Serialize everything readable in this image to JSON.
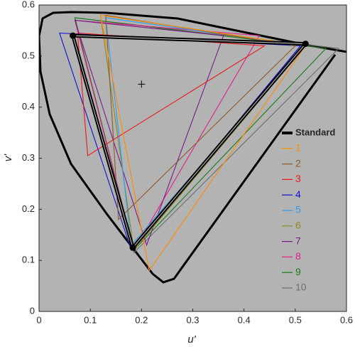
{
  "chart_data": {
    "type": "chromaticity",
    "x_label": "u'",
    "y_label": "v'",
    "xlim": [
      0,
      0.6
    ],
    "ylim": [
      0,
      0.6
    ],
    "xticks": [
      0,
      0.1,
      0.2,
      0.3,
      0.4,
      0.5,
      0.6
    ],
    "yticks": [
      0,
      0.1,
      0.2,
      0.3,
      0.4,
      0.5,
      0.6
    ],
    "background": "#b3b3b3",
    "locus": {
      "color": "#000000",
      "x": [
        0.6,
        0.5196,
        0.2702,
        0.1316,
        0.0624,
        0.0277,
        0.0069,
        0.0,
        0.0028,
        0.0208,
        0.0624,
        0.1316,
        0.2217,
        0.2425,
        0.2633,
        0.5778
      ],
      "values": [
        0.5083,
        0.5222,
        0.5736,
        0.5847,
        0.5861,
        0.5847,
        0.5736,
        0.5389,
        0.4694,
        0.3861,
        0.2889,
        0.1917,
        0.0736,
        0.057,
        0.0639,
        0.5028
      ]
    },
    "cross": {
      "x": 0.2,
      "y": 0.445
    },
    "series": [
      {
        "name": "Standard",
        "color": "#000000",
        "x": [
          0.066,
          0.52,
          0.183
        ],
        "values": [
          0.54,
          0.524,
          0.125
        ]
      },
      {
        "name": "1",
        "color": "#ff8c00",
        "x": [
          0.12,
          0.52,
          0.215
        ],
        "values": [
          0.58,
          0.52,
          0.08
        ]
      },
      {
        "name": "2",
        "color": "#8b5a2b",
        "x": [
          0.13,
          0.5,
          0.155
        ],
        "values": [
          0.58,
          0.52,
          0.18
        ]
      },
      {
        "name": "3",
        "color": "#e8191b",
        "x": [
          0.075,
          0.44,
          0.095
        ],
        "values": [
          0.545,
          0.52,
          0.305
        ]
      },
      {
        "name": "4",
        "color": "#1010d0",
        "x": [
          0.04,
          0.51,
          0.18
        ],
        "values": [
          0.545,
          0.52,
          0.12
        ]
      },
      {
        "name": "5",
        "color": "#2f9cf0",
        "x": [
          0.13,
          0.52,
          0.18
        ],
        "values": [
          0.575,
          0.52,
          0.13
        ]
      },
      {
        "name": "6",
        "color": "#8a8a1a",
        "x": [
          0.12,
          0.52,
          0.185
        ],
        "values": [
          0.58,
          0.52,
          0.12
        ]
      },
      {
        "name": "7",
        "color": "#7b1a8b",
        "x": [
          0.07,
          0.36,
          0.21
        ],
        "values": [
          0.57,
          0.54,
          0.13
        ]
      },
      {
        "name": "8",
        "color": "#e0208a",
        "x": [
          0.07,
          0.43,
          0.185
        ],
        "values": [
          0.57,
          0.54,
          0.12
        ]
      },
      {
        "name": "9",
        "color": "#1a7a1a",
        "x": [
          0.07,
          0.56,
          0.185
        ],
        "values": [
          0.575,
          0.515,
          0.12
        ]
      },
      {
        "name": "10",
        "color": "#707070",
        "x": [
          0.07,
          0.585,
          0.185
        ],
        "values": [
          0.575,
          0.515,
          0.115
        ]
      }
    ]
  }
}
